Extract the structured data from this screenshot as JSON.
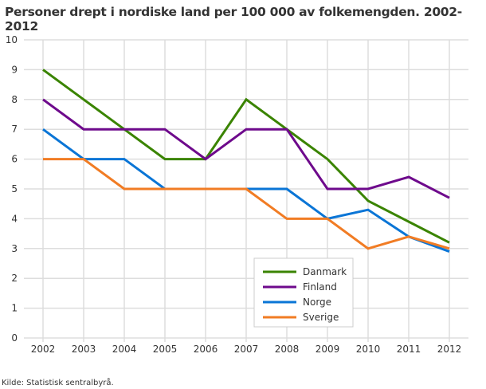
{
  "chart_data": {
    "type": "line",
    "title": "Personer drept i nordiske land per 100 000 av folkemengden. 2002-2012",
    "source": "Kilde: Statistisk sentralbyrå.",
    "x": [
      "2002",
      "2003",
      "2004",
      "2005",
      "2006",
      "2007",
      "2008",
      "2009",
      "2010",
      "2011",
      "2012"
    ],
    "ylim": [
      0,
      10
    ],
    "yticks": [
      "0",
      "1",
      "2",
      "3",
      "4",
      "5",
      "6",
      "7",
      "8",
      "9",
      "10"
    ],
    "grid": true,
    "legend_placement": "bottom-right",
    "series": [
      {
        "name": "Danmark",
        "color": "#3a8400",
        "values": [
          9,
          8,
          7,
          6,
          6,
          8,
          7,
          6,
          4.6,
          3.9,
          3.2
        ]
      },
      {
        "name": "Finland",
        "color": "#6e0a8c",
        "values": [
          8,
          7,
          7,
          7,
          6,
          7,
          7,
          5,
          5,
          5.4,
          4.7
        ]
      },
      {
        "name": "Norge",
        "color": "#0a75d6",
        "values": [
          7,
          6,
          6,
          5,
          5,
          5,
          5,
          4,
          4.3,
          3.4,
          2.9
        ]
      },
      {
        "name": "Sverige",
        "color": "#f17c24",
        "values": [
          6,
          6,
          5,
          5,
          5,
          5,
          4,
          4,
          3,
          3.4,
          3.0
        ]
      }
    ]
  }
}
